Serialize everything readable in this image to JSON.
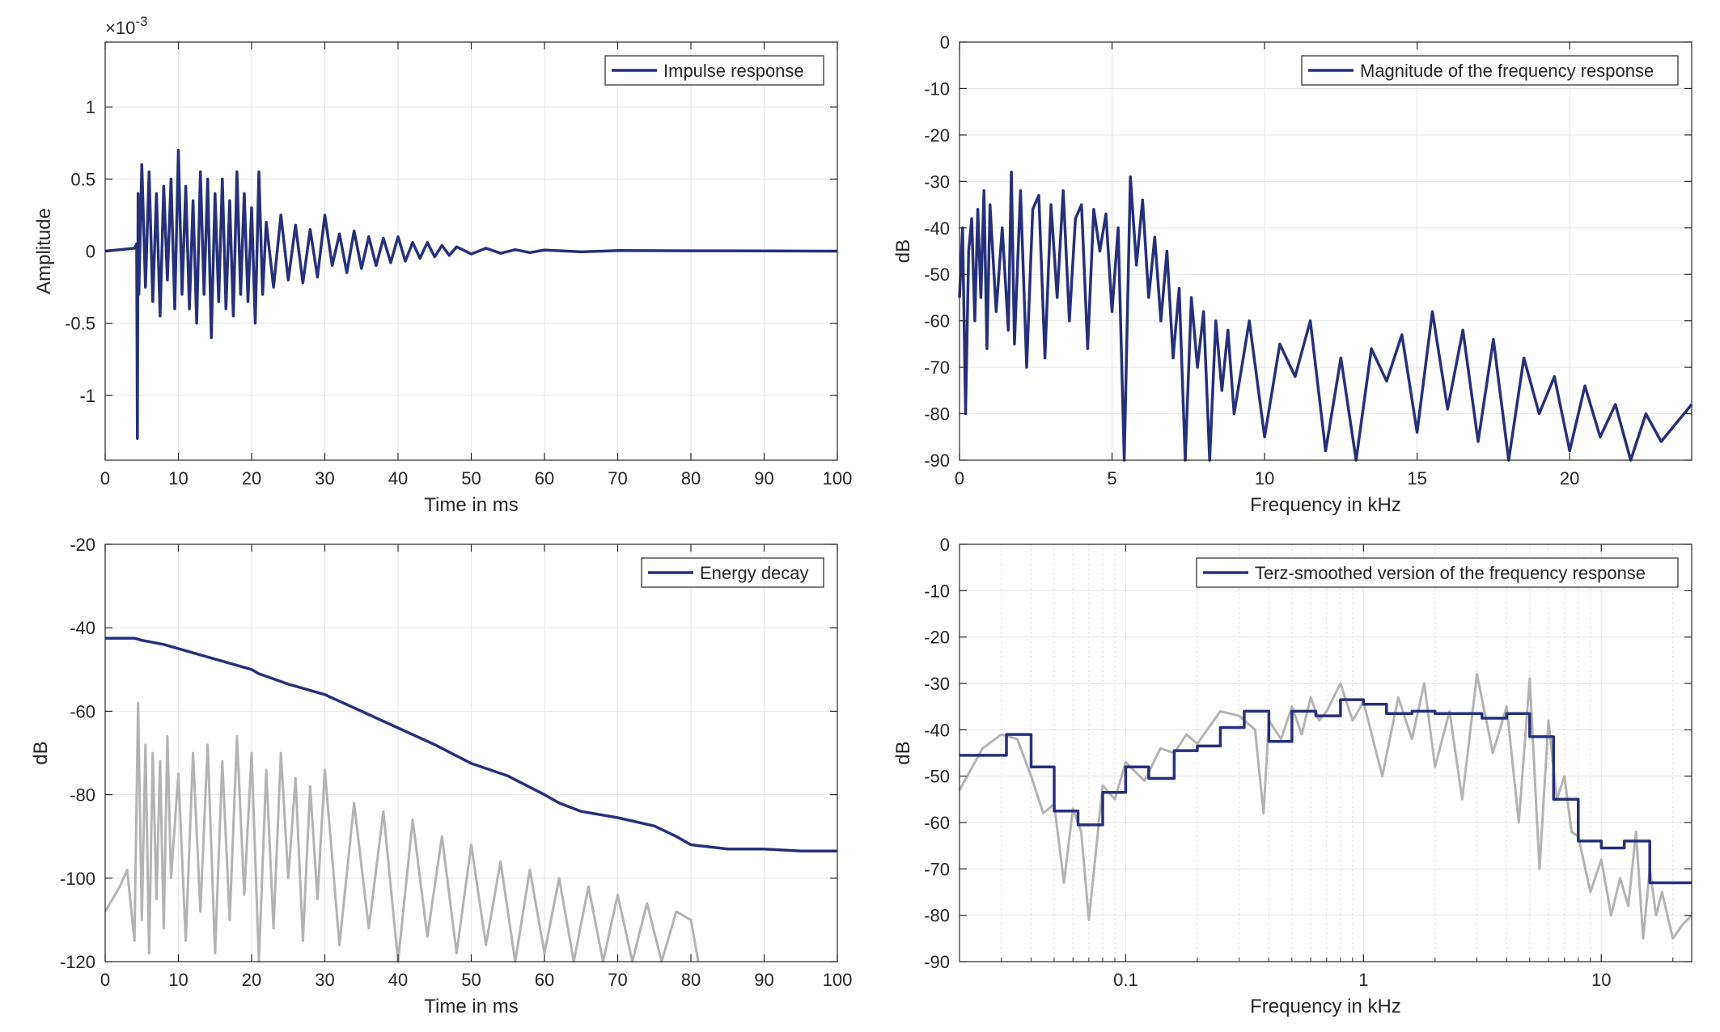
{
  "figure": {
    "colors": {
      "series": "#26307a",
      "grey": "#b3b3b3",
      "grid": "#e6e6e6",
      "axis": "#262626"
    }
  },
  "chart_data": [
    {
      "id": "impulse",
      "type": "line",
      "title": "",
      "xlabel": "Time in ms",
      "ylabel": "Amplitude",
      "exponent_label": "×10",
      "exponent_power": "-3",
      "xlim": [
        0,
        100
      ],
      "ylim": [
        -1.45,
        1.45
      ],
      "xticks": [
        0,
        10,
        20,
        30,
        40,
        50,
        60,
        70,
        80,
        90,
        100
      ],
      "xtick_labels": [
        "0",
        "10",
        "20",
        "30",
        "40",
        "50",
        "60",
        "70",
        "80",
        "90",
        "100"
      ],
      "yticks": [
        -1,
        -0.5,
        0,
        0.5,
        1
      ],
      "ytick_labels": [
        "-1",
        "-0.5",
        "0",
        "0.5",
        "1"
      ],
      "grid": true,
      "legend": {
        "position": "top-right",
        "entries": [
          "Impulse response"
        ]
      },
      "series": [
        {
          "name": "Impulse response",
          "x": [
            0,
            2,
            4,
            4.3,
            4.4,
            4.5,
            4.6,
            5,
            5.5,
            6,
            6.5,
            7,
            7.5,
            8,
            8.5,
            9,
            9.5,
            10,
            10.5,
            11,
            11.5,
            12,
            12.5,
            13,
            13.5,
            14,
            14.5,
            15,
            15.5,
            16,
            16.5,
            17,
            17.5,
            18,
            18.5,
            19,
            19.5,
            20,
            20.5,
            21,
            21.5,
            22,
            23,
            24,
            25,
            26,
            27,
            28,
            29,
            30,
            31,
            32,
            33,
            34,
            35,
            36,
            37,
            38,
            39,
            40,
            41,
            42,
            43,
            44,
            45,
            46,
            47,
            48,
            50,
            52,
            54,
            56,
            58,
            60,
            65,
            70,
            80,
            90,
            100
          ],
          "y": [
            0,
            0.01,
            0.02,
            0.05,
            -1.3,
            0.4,
            -0.3,
            0.6,
            -0.25,
            0.55,
            -0.35,
            0.4,
            -0.45,
            0.45,
            -0.2,
            0.5,
            -0.4,
            0.7,
            -0.3,
            0.45,
            -0.4,
            0.35,
            -0.5,
            0.55,
            -0.3,
            0.5,
            -0.6,
            0.4,
            -0.35,
            0.5,
            -0.4,
            0.35,
            -0.45,
            0.55,
            -0.3,
            0.4,
            -0.35,
            0.3,
            -0.5,
            0.55,
            -0.3,
            0.2,
            -0.25,
            0.25,
            -0.2,
            0.18,
            -0.22,
            0.15,
            -0.18,
            0.25,
            -0.1,
            0.12,
            -0.15,
            0.14,
            -0.12,
            0.1,
            -0.1,
            0.09,
            -0.08,
            0.1,
            -0.07,
            0.06,
            -0.05,
            0.06,
            -0.04,
            0.04,
            -0.03,
            0.03,
            -0.02,
            0.02,
            -0.015,
            0.01,
            -0.01,
            0.008,
            -0.005,
            0.004,
            0.002,
            0.001,
            0
          ]
        }
      ]
    },
    {
      "id": "magnitude",
      "type": "line",
      "title": "",
      "xlabel": "Frequency in kHz",
      "ylabel": "dB",
      "xlim": [
        0,
        24
      ],
      "ylim": [
        -90,
        0
      ],
      "xticks": [
        0,
        5,
        10,
        15,
        20
      ],
      "xtick_labels": [
        "0",
        "5",
        "10",
        "15",
        "20"
      ],
      "yticks": [
        0,
        -10,
        -20,
        -30,
        -40,
        -50,
        -60,
        -70,
        -80,
        -90
      ],
      "ytick_labels": [
        "0",
        "-10",
        "-20",
        "-30",
        "-40",
        "-50",
        "-60",
        "-70",
        "-80",
        "-90"
      ],
      "grid": true,
      "legend": {
        "position": "top-right",
        "entries": [
          "Magnitude of the frequency response"
        ]
      },
      "series": [
        {
          "name": "Magnitude of the frequency response",
          "x": [
            0,
            0.1,
            0.2,
            0.3,
            0.4,
            0.5,
            0.6,
            0.7,
            0.8,
            0.9,
            1.0,
            1.2,
            1.4,
            1.6,
            1.7,
            1.8,
            2.0,
            2.2,
            2.4,
            2.6,
            2.8,
            3.0,
            3.2,
            3.4,
            3.6,
            3.8,
            4.0,
            4.2,
            4.4,
            4.6,
            4.8,
            5.0,
            5.2,
            5.4,
            5.6,
            5.8,
            6.0,
            6.2,
            6.4,
            6.6,
            6.8,
            7.0,
            7.2,
            7.4,
            7.6,
            7.8,
            8.0,
            8.2,
            8.4,
            8.6,
            8.8,
            9.0,
            9.5,
            10.0,
            10.5,
            11.0,
            11.5,
            12.0,
            12.5,
            13.0,
            13.5,
            14.0,
            14.5,
            15.0,
            15.5,
            16.0,
            16.5,
            17.0,
            17.5,
            18.0,
            18.5,
            19.0,
            19.5,
            20.0,
            20.5,
            21.0,
            21.5,
            22.0,
            22.5,
            23.0,
            23.5,
            24.0
          ],
          "y": [
            -55,
            -40,
            -80,
            -45,
            -38,
            -60,
            -36,
            -55,
            -32,
            -66,
            -35,
            -58,
            -40,
            -62,
            -28,
            -65,
            -32,
            -70,
            -36,
            -33,
            -68,
            -35,
            -55,
            -32,
            -60,
            -38,
            -35,
            -66,
            -36,
            -45,
            -37,
            -58,
            -40,
            -90,
            -29,
            -48,
            -34,
            -55,
            -42,
            -60,
            -45,
            -68,
            -53,
            -90,
            -55,
            -70,
            -58,
            -90,
            -60,
            -75,
            -62,
            -80,
            -60,
            -85,
            -65,
            -72,
            -60,
            -88,
            -68,
            -90,
            -66,
            -73,
            -63,
            -84,
            -58,
            -79,
            -62,
            -86,
            -64,
            -90,
            -68,
            -80,
            -72,
            -88,
            -74,
            -85,
            -78,
            -90,
            -80,
            -86,
            -82,
            -78
          ]
        }
      ]
    },
    {
      "id": "energy",
      "type": "line",
      "title": "",
      "xlabel": "Time in ms",
      "ylabel": "dB",
      "xlim": [
        0,
        100
      ],
      "ylim": [
        -120,
        -20
      ],
      "xticks": [
        0,
        10,
        20,
        30,
        40,
        50,
        60,
        70,
        80,
        90,
        100
      ],
      "xtick_labels": [
        "0",
        "10",
        "20",
        "30",
        "40",
        "50",
        "60",
        "70",
        "80",
        "90",
        "100"
      ],
      "yticks": [
        -20,
        -40,
        -60,
        -80,
        -100,
        -120
      ],
      "ytick_labels": [
        "-20",
        "-40",
        "-60",
        "-80",
        "-100",
        "-120"
      ],
      "grid": true,
      "legend": {
        "position": "top-right",
        "entries": [
          "Energy decay"
        ]
      },
      "series": [
        {
          "name": "Energy decay",
          "x": [
            0,
            4,
            5,
            8,
            12,
            15,
            20,
            21,
            25,
            30,
            35,
            40,
            45,
            50,
            55,
            60,
            62,
            65,
            70,
            75,
            78,
            80,
            85,
            90,
            95,
            100
          ],
          "y": [
            -42.5,
            -42.5,
            -43,
            -44,
            -46,
            -47.5,
            -50,
            -51,
            -53.5,
            -56,
            -60,
            -64,
            -68,
            -72.5,
            -75.5,
            -80,
            -82,
            -84,
            -85.5,
            -87.5,
            -90,
            -92,
            -93,
            -93,
            -93.5,
            -93.5
          ]
        },
        {
          "name": "",
          "x": [
            0,
            1,
            2,
            3,
            4,
            4.5,
            5,
            5.5,
            6,
            6.5,
            7,
            7.5,
            8,
            8.5,
            9,
            10,
            11,
            12,
            13,
            14,
            15,
            16,
            17,
            18,
            19,
            20,
            21,
            22,
            23,
            24,
            25,
            26,
            27,
            28,
            29,
            30,
            32,
            34,
            36,
            38,
            40,
            42,
            44,
            46,
            48,
            50,
            52,
            54,
            56,
            58,
            60,
            62,
            64,
            66,
            68,
            70,
            72,
            74,
            76,
            78,
            80,
            81
          ],
          "y": [
            -108,
            -105,
            -102,
            -98,
            -115,
            -58,
            -110,
            -68,
            -118,
            -70,
            -105,
            -72,
            -112,
            -66,
            -100,
            -75,
            -115,
            -70,
            -108,
            -68,
            -118,
            -72,
            -110,
            -66,
            -104,
            -70,
            -120,
            -74,
            -112,
            -70,
            -100,
            -76,
            -115,
            -78,
            -105,
            -74,
            -116,
            -82,
            -112,
            -84,
            -120,
            -86,
            -114,
            -90,
            -118,
            -92,
            -116,
            -96,
            -120,
            -98,
            -118,
            -100,
            -120,
            -102,
            -120,
            -104,
            -120,
            -106,
            -120,
            -108,
            -110,
            -120
          ]
        }
      ]
    },
    {
      "id": "terz",
      "type": "line",
      "title": "",
      "xlabel": "Frequency in kHz",
      "ylabel": "dB",
      "xscale": "log",
      "xlim": [
        0.02,
        24
      ],
      "ylim": [
        -90,
        0
      ],
      "xticks": [
        0.1,
        1,
        10
      ],
      "xtick_labels": [
        "0.1",
        "1",
        "10"
      ],
      "yticks": [
        0,
        -10,
        -20,
        -30,
        -40,
        -50,
        -60,
        -70,
        -80,
        -90
      ],
      "ytick_labels": [
        "0",
        "-10",
        "-20",
        "-30",
        "-40",
        "-50",
        "-60",
        "-70",
        "-80",
        "-90"
      ],
      "grid": true,
      "legend": {
        "position": "top-right",
        "entries": [
          "Terz-smoothed version of the frequency response"
        ]
      },
      "series": [
        {
          "name": "",
          "x": [
            0.02,
            0.025,
            0.03,
            0.035,
            0.04,
            0.045,
            0.05,
            0.055,
            0.06,
            0.065,
            0.07,
            0.08,
            0.09,
            0.1,
            0.12,
            0.14,
            0.16,
            0.18,
            0.2,
            0.25,
            0.3,
            0.35,
            0.38,
            0.4,
            0.45,
            0.5,
            0.55,
            0.6,
            0.65,
            0.7,
            0.8,
            0.9,
            1.0,
            1.2,
            1.4,
            1.6,
            1.8,
            2.0,
            2.3,
            2.6,
            3.0,
            3.5,
            4.0,
            4.5,
            5.0,
            5.5,
            6.0,
            6.5,
            7.0,
            7.5,
            8.0,
            9.0,
            10.0,
            11.0,
            12.0,
            13.0,
            14.0,
            15.0,
            16.0,
            17.0,
            18.0,
            20.0,
            22.0,
            24.0
          ],
          "y": [
            -53,
            -44,
            -41,
            -42,
            -50,
            -58,
            -56,
            -73,
            -57,
            -62,
            -81,
            -52,
            -55,
            -47,
            -51,
            -44,
            -45,
            -41,
            -43,
            -36,
            -37,
            -40,
            -58,
            -38,
            -42,
            -35,
            -41,
            -33,
            -38,
            -36,
            -30,
            -38,
            -34,
            -50,
            -33,
            -42,
            -30,
            -48,
            -36,
            -55,
            -28,
            -45,
            -35,
            -60,
            -29,
            -70,
            -38,
            -55,
            -50,
            -62,
            -63,
            -75,
            -68,
            -80,
            -72,
            -78,
            -62,
            -85,
            -70,
            -80,
            -75,
            -85,
            -82,
            -80
          ]
        },
        {
          "name": "Terz-smoothed version of the frequency response",
          "x": [
            0.02,
            0.0315,
            0.0315,
            0.04,
            0.04,
            0.05,
            0.05,
            0.063,
            0.063,
            0.08,
            0.08,
            0.1,
            0.1,
            0.125,
            0.125,
            0.16,
            0.16,
            0.2,
            0.2,
            0.25,
            0.25,
            0.315,
            0.315,
            0.4,
            0.4,
            0.5,
            0.5,
            0.63,
            0.63,
            0.8,
            0.8,
            1.0,
            1.0,
            1.25,
            1.25,
            1.6,
            1.6,
            2.0,
            2.0,
            2.5,
            2.5,
            3.15,
            3.15,
            4.0,
            4.0,
            5.0,
            5.0,
            6.3,
            6.3,
            8.0,
            8.0,
            10.0,
            10.0,
            12.5,
            12.5,
            16.0,
            16.0,
            20.0,
            20.0,
            24.0
          ],
          "y": [
            -45.5,
            -45.5,
            -41,
            -41,
            -48,
            -48,
            -57.5,
            -57.5,
            -60.5,
            -60.5,
            -53.5,
            -53.5,
            -48,
            -48,
            -50.5,
            -50.5,
            -44.5,
            -44.5,
            -43.5,
            -43.5,
            -39.5,
            -39.5,
            -36,
            -36,
            -42.5,
            -42.5,
            -36,
            -36,
            -37,
            -37,
            -33.5,
            -33.5,
            -34.5,
            -34.5,
            -36.5,
            -36.5,
            -36,
            -36,
            -36.5,
            -36.5,
            -36.5,
            -36.5,
            -37.5,
            -37.5,
            -36.5,
            -36.5,
            -41.5,
            -41.5,
            -55,
            -55,
            -64,
            -64,
            -65.5,
            -65.5,
            -64,
            -64,
            -73,
            -73,
            -73,
            -73
          ]
        }
      ]
    }
  ]
}
